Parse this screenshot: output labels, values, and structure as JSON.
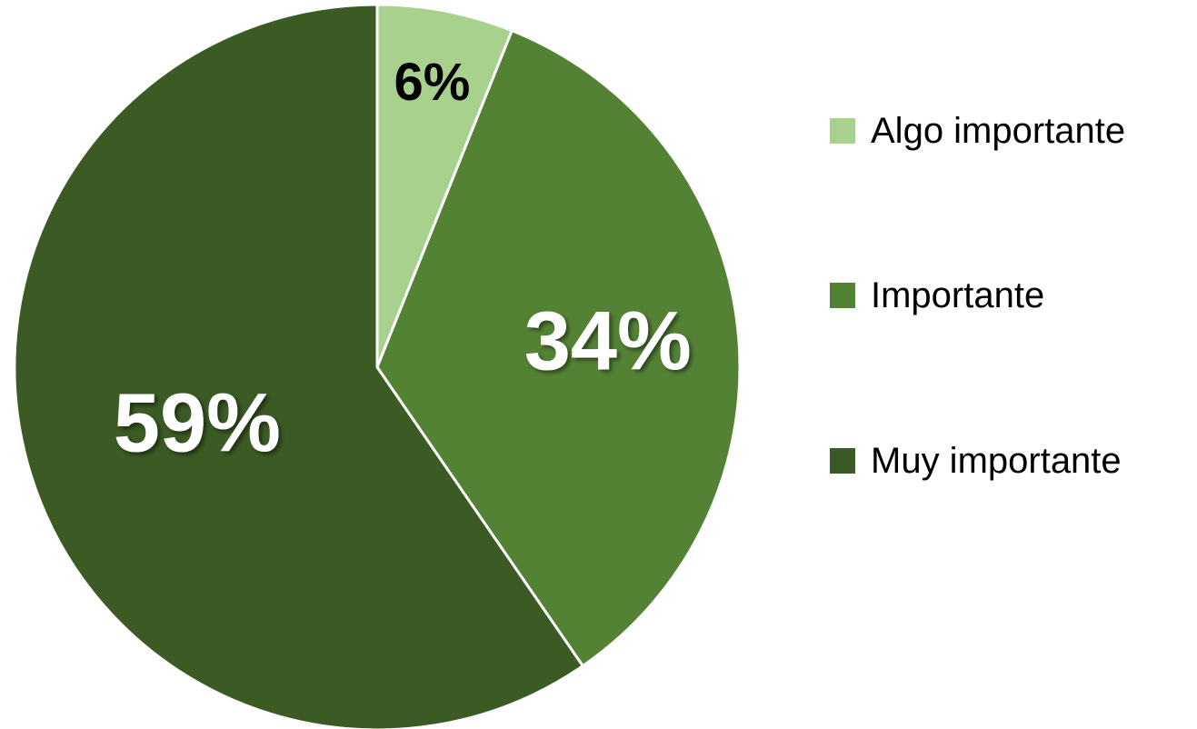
{
  "chart_data": {
    "type": "pie",
    "categories": [
      "Algo importante",
      "Importante",
      "Muy importante"
    ],
    "values": [
      6,
      34,
      59
    ],
    "data_labels": [
      "6%",
      "34%",
      "59%"
    ],
    "colors": [
      "#a9d18e",
      "#548235",
      "#3b5a24"
    ],
    "label_colors": [
      "#000000",
      "#ffffff",
      "#ffffff"
    ],
    "legend_position": "right",
    "start_angle": "top, clockwise"
  }
}
